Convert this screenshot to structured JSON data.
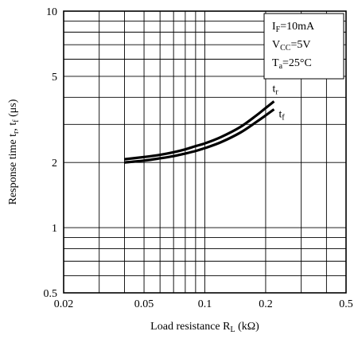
{
  "chart_data": {
    "type": "line",
    "x_scale": "log",
    "y_scale": "log",
    "xlim": [
      0.02,
      0.5
    ],
    "ylim": [
      0.5,
      10
    ],
    "grid": true,
    "x_ticks": [
      "0.02",
      "0.05",
      "0.1",
      "0.2",
      "0.5"
    ],
    "y_ticks": [
      "10",
      "5",
      "2",
      "1",
      "0.5"
    ],
    "xlabel": {
      "main": "Load resistance R",
      "sub": "L",
      "unit": " (kΩ)"
    },
    "ylabel": {
      "prefix": "Response time t",
      "sub1": "r",
      "sep": ", t",
      "sub2": "f",
      "unit": " (μs)"
    },
    "conditions": [
      {
        "main": "I",
        "sub": "F",
        "rest": "=10mA"
      },
      {
        "main": "V",
        "sub": "CC",
        "rest": "=5V"
      },
      {
        "main": "T",
        "sub": "a",
        "rest": "=25°C"
      }
    ],
    "conditions_position": "top-right",
    "series": [
      {
        "label_main": "t",
        "label_sub": "r",
        "x": [
          0.04,
          0.05,
          0.06,
          0.07,
          0.08,
          0.09,
          0.1,
          0.12,
          0.15,
          0.18,
          0.2,
          0.22
        ],
        "y": [
          2.07,
          2.12,
          2.17,
          2.23,
          2.3,
          2.38,
          2.45,
          2.62,
          2.92,
          3.3,
          3.57,
          3.83
        ]
      },
      {
        "label_main": "t",
        "label_sub": "f",
        "x": [
          0.04,
          0.05,
          0.06,
          0.07,
          0.08,
          0.09,
          0.1,
          0.12,
          0.15,
          0.18,
          0.2,
          0.22
        ],
        "y": [
          2.0,
          2.04,
          2.09,
          2.14,
          2.2,
          2.26,
          2.33,
          2.48,
          2.75,
          3.08,
          3.3,
          3.52
        ]
      }
    ]
  }
}
